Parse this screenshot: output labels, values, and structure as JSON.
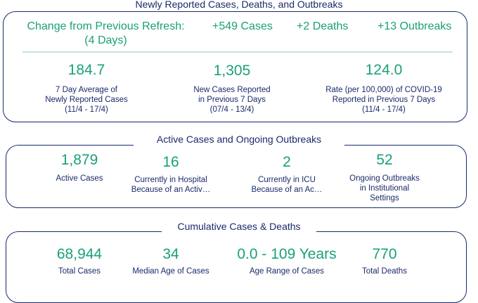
{
  "section1": {
    "title": "Newly Reported Cases, Deaths, and Outbreaks",
    "change_label_line1": "Change from Previous Refresh:",
    "change_label_line2": "(4 Days)",
    "change_cases": "+549 Cases",
    "change_deaths": "+2 Deaths",
    "change_outbreaks": "+13 Outbreaks",
    "stats": [
      {
        "value": "184.7",
        "line1": "7 Day Average of",
        "line2": "Newly Reported Cases",
        "line3": "(11/4 - 17/4)"
      },
      {
        "value": "1,305",
        "line1": "New Cases Reported",
        "line2": "in Previous 7 Days",
        "line3": "(07/4 - 13/4)"
      },
      {
        "value": "124.0",
        "line1": "Rate (per 100,000) of COVID-19",
        "line2": "Reported in Previous 7 Days",
        "line3": "(11/4 - 17/4)"
      }
    ]
  },
  "section2": {
    "title": "Active Cases and Ongoing Outbreaks",
    "stats": [
      {
        "value": "1,879",
        "line1": "Active Cases",
        "line2": "",
        "line3": ""
      },
      {
        "value": "16",
        "line1": "Currently in Hospital",
        "line2": "Because of an Activ…",
        "line3": ""
      },
      {
        "value": "2",
        "line1": "Currently in ICU",
        "line2": "Because of an Ac…",
        "line3": ""
      },
      {
        "value": "52",
        "line1": "Ongoing Outbreaks",
        "line2": "in Institutional",
        "line3": "Settings"
      }
    ]
  },
  "section3": {
    "title": "Cumulative Cases & Deaths",
    "stats": [
      {
        "value": "68,944",
        "label": "Total Cases"
      },
      {
        "value": "34",
        "label": "Median Age of Cases"
      },
      {
        "value": "0.0 - 109 Years",
        "label": "Age Range of Cases"
      },
      {
        "value": "770",
        "label": "Total Deaths"
      }
    ]
  },
  "colors": {
    "accent": "#1aa07a",
    "navy": "#1a2a6c",
    "divider": "#bfe6d9"
  }
}
